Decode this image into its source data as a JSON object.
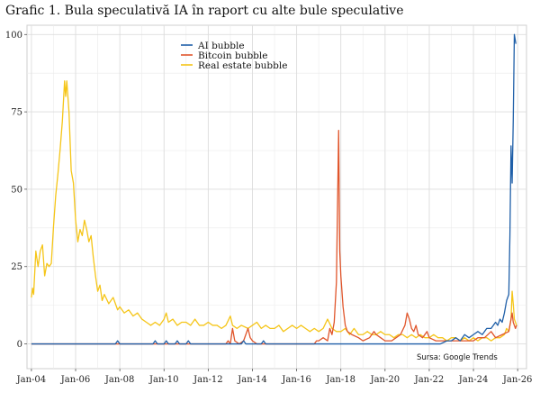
{
  "chart_data": {
    "type": "line",
    "title": "Grafic 1. Bula speculativă IA în raport cu alte bule speculative",
    "xlabel": "",
    "ylabel": "",
    "source": "Sursa: Google Trends",
    "xlim": [
      2003.8,
      2026.4
    ],
    "ylim": [
      -8,
      103
    ],
    "yticks": [
      0,
      25,
      50,
      75,
      100
    ],
    "xticks": [
      {
        "label": "Jan-04",
        "value": 2004
      },
      {
        "label": "Jan-06",
        "value": 2006
      },
      {
        "label": "Jan-08",
        "value": 2008
      },
      {
        "label": "Jan-10",
        "value": 2010
      },
      {
        "label": "Jan-12",
        "value": 2012
      },
      {
        "label": "Jan-14",
        "value": 2014
      },
      {
        "label": "Jan-16",
        "value": 2016
      },
      {
        "label": "Jan-18",
        "value": 2018
      },
      {
        "label": "Jan-20",
        "value": 2020
      },
      {
        "label": "Jan-22",
        "value": 2022
      },
      {
        "label": "Jan-24",
        "value": 2024
      },
      {
        "label": "Jan-26",
        "value": 2026
      }
    ],
    "grid": true,
    "legend_position": "top-center",
    "series": [
      {
        "name": "AI bubble",
        "color": "#1f5fa8",
        "points": [
          [
            2004.0,
            0
          ],
          [
            2007.8,
            0
          ],
          [
            2007.9,
            1
          ],
          [
            2008.0,
            0
          ],
          [
            2009.5,
            0
          ],
          [
            2009.6,
            1
          ],
          [
            2009.7,
            0
          ],
          [
            2010.0,
            0
          ],
          [
            2010.1,
            1
          ],
          [
            2010.2,
            0
          ],
          [
            2010.5,
            0
          ],
          [
            2010.6,
            1
          ],
          [
            2010.7,
            0
          ],
          [
            2011.0,
            0
          ],
          [
            2011.1,
            1
          ],
          [
            2011.2,
            0
          ],
          [
            2012.0,
            0
          ],
          [
            2013.5,
            0
          ],
          [
            2013.6,
            1
          ],
          [
            2013.7,
            0
          ],
          [
            2014.4,
            0
          ],
          [
            2014.5,
            1
          ],
          [
            2014.6,
            0
          ],
          [
            2022.5,
            0
          ],
          [
            2022.8,
            1
          ],
          [
            2023.0,
            1
          ],
          [
            2023.2,
            2
          ],
          [
            2023.4,
            1
          ],
          [
            2023.6,
            3
          ],
          [
            2023.8,
            2
          ],
          [
            2024.0,
            3
          ],
          [
            2024.2,
            4
          ],
          [
            2024.4,
            3
          ],
          [
            2024.6,
            5
          ],
          [
            2024.8,
            5
          ],
          [
            2025.0,
            7
          ],
          [
            2025.1,
            6
          ],
          [
            2025.2,
            8
          ],
          [
            2025.3,
            7
          ],
          [
            2025.4,
            10
          ],
          [
            2025.5,
            14
          ],
          [
            2025.6,
            16
          ],
          [
            2025.65,
            35
          ],
          [
            2025.7,
            64
          ],
          [
            2025.75,
            52
          ],
          [
            2025.8,
            72
          ],
          [
            2025.85,
            100
          ],
          [
            2025.92,
            97
          ]
        ]
      },
      {
        "name": "Bitcoin bubble",
        "color": "#e0552b",
        "points": [
          [
            2004.0,
            0
          ],
          [
            2012.0,
            0
          ],
          [
            2012.8,
            0
          ],
          [
            2012.9,
            1
          ],
          [
            2013.0,
            0
          ],
          [
            2013.1,
            5
          ],
          [
            2013.2,
            1
          ],
          [
            2013.4,
            0
          ],
          [
            2013.6,
            1
          ],
          [
            2013.8,
            5
          ],
          [
            2013.9,
            2
          ],
          [
            2014.0,
            1
          ],
          [
            2014.2,
            0
          ],
          [
            2016.0,
            0
          ],
          [
            2016.8,
            0
          ],
          [
            2016.9,
            1
          ],
          [
            2017.0,
            1
          ],
          [
            2017.2,
            2
          ],
          [
            2017.4,
            1
          ],
          [
            2017.5,
            5
          ],
          [
            2017.6,
            3
          ],
          [
            2017.7,
            7
          ],
          [
            2017.8,
            20
          ],
          [
            2017.9,
            69
          ],
          [
            2017.95,
            30
          ],
          [
            2018.0,
            22
          ],
          [
            2018.1,
            12
          ],
          [
            2018.2,
            6
          ],
          [
            2018.3,
            4
          ],
          [
            2018.5,
            3
          ],
          [
            2018.8,
            2
          ],
          [
            2019.0,
            1
          ],
          [
            2019.3,
            2
          ],
          [
            2019.5,
            4
          ],
          [
            2019.6,
            3
          ],
          [
            2019.8,
            2
          ],
          [
            2020.0,
            1
          ],
          [
            2020.3,
            1
          ],
          [
            2020.5,
            2
          ],
          [
            2020.7,
            3
          ],
          [
            2020.9,
            6
          ],
          [
            2021.0,
            10
          ],
          [
            2021.1,
            8
          ],
          [
            2021.2,
            5
          ],
          [
            2021.3,
            4
          ],
          [
            2021.4,
            6
          ],
          [
            2021.5,
            3
          ],
          [
            2021.7,
            2
          ],
          [
            2021.9,
            4
          ],
          [
            2022.0,
            2
          ],
          [
            2022.3,
            1
          ],
          [
            2022.6,
            1
          ],
          [
            2023.0,
            1
          ],
          [
            2023.5,
            1
          ],
          [
            2024.0,
            1
          ],
          [
            2024.2,
            2
          ],
          [
            2024.5,
            2
          ],
          [
            2024.8,
            4
          ],
          [
            2025.0,
            2
          ],
          [
            2025.3,
            3
          ],
          [
            2025.6,
            4
          ],
          [
            2025.75,
            10
          ],
          [
            2025.8,
            7
          ],
          [
            2025.9,
            5
          ],
          [
            2025.95,
            6
          ]
        ]
      },
      {
        "name": "Real estate bubble",
        "color": "#f5c518",
        "points": [
          [
            2004.0,
            15
          ],
          [
            2004.05,
            18
          ],
          [
            2004.1,
            16
          ],
          [
            2004.2,
            30
          ],
          [
            2004.3,
            25
          ],
          [
            2004.4,
            30
          ],
          [
            2004.5,
            32
          ],
          [
            2004.6,
            22
          ],
          [
            2004.7,
            26
          ],
          [
            2004.8,
            25
          ],
          [
            2004.9,
            26
          ],
          [
            2005.0,
            38
          ],
          [
            2005.1,
            48
          ],
          [
            2005.2,
            55
          ],
          [
            2005.3,
            63
          ],
          [
            2005.4,
            72
          ],
          [
            2005.5,
            85
          ],
          [
            2005.55,
            80
          ],
          [
            2005.6,
            85
          ],
          [
            2005.7,
            75
          ],
          [
            2005.8,
            56
          ],
          [
            2005.9,
            52
          ],
          [
            2006.0,
            40
          ],
          [
            2006.1,
            33
          ],
          [
            2006.2,
            37
          ],
          [
            2006.3,
            35
          ],
          [
            2006.4,
            40
          ],
          [
            2006.5,
            37
          ],
          [
            2006.6,
            33
          ],
          [
            2006.7,
            35
          ],
          [
            2006.8,
            28
          ],
          [
            2006.9,
            22
          ],
          [
            2007.0,
            17
          ],
          [
            2007.1,
            19
          ],
          [
            2007.2,
            14
          ],
          [
            2007.3,
            16
          ],
          [
            2007.5,
            13
          ],
          [
            2007.7,
            15
          ],
          [
            2007.9,
            11
          ],
          [
            2008.0,
            12
          ],
          [
            2008.2,
            10
          ],
          [
            2008.4,
            11
          ],
          [
            2008.6,
            9
          ],
          [
            2008.8,
            10
          ],
          [
            2009.0,
            8
          ],
          [
            2009.2,
            7
          ],
          [
            2009.4,
            6
          ],
          [
            2009.6,
            7
          ],
          [
            2009.8,
            6
          ],
          [
            2010.0,
            8
          ],
          [
            2010.1,
            10
          ],
          [
            2010.2,
            7
          ],
          [
            2010.4,
            8
          ],
          [
            2010.6,
            6
          ],
          [
            2010.8,
            7
          ],
          [
            2011.0,
            7
          ],
          [
            2011.2,
            6
          ],
          [
            2011.4,
            8
          ],
          [
            2011.6,
            6
          ],
          [
            2011.8,
            6
          ],
          [
            2012.0,
            7
          ],
          [
            2012.2,
            6
          ],
          [
            2012.4,
            6
          ],
          [
            2012.6,
            5
          ],
          [
            2012.8,
            6
          ],
          [
            2013.0,
            9
          ],
          [
            2013.1,
            6
          ],
          [
            2013.3,
            5
          ],
          [
            2013.5,
            6
          ],
          [
            2013.8,
            5
          ],
          [
            2014.0,
            6
          ],
          [
            2014.2,
            7
          ],
          [
            2014.4,
            5
          ],
          [
            2014.6,
            6
          ],
          [
            2014.8,
            5
          ],
          [
            2015.0,
            5
          ],
          [
            2015.2,
            6
          ],
          [
            2015.4,
            4
          ],
          [
            2015.6,
            5
          ],
          [
            2015.8,
            6
          ],
          [
            2016.0,
            5
          ],
          [
            2016.2,
            6
          ],
          [
            2016.4,
            5
          ],
          [
            2016.6,
            4
          ],
          [
            2016.8,
            5
          ],
          [
            2017.0,
            4
          ],
          [
            2017.2,
            5
          ],
          [
            2017.4,
            8
          ],
          [
            2017.6,
            5
          ],
          [
            2017.8,
            4
          ],
          [
            2018.0,
            4
          ],
          [
            2018.2,
            5
          ],
          [
            2018.4,
            3
          ],
          [
            2018.6,
            5
          ],
          [
            2018.8,
            3
          ],
          [
            2019.0,
            3
          ],
          [
            2019.2,
            4
          ],
          [
            2019.4,
            3
          ],
          [
            2019.6,
            3
          ],
          [
            2019.8,
            4
          ],
          [
            2020.0,
            3
          ],
          [
            2020.2,
            3
          ],
          [
            2020.4,
            2
          ],
          [
            2020.6,
            3
          ],
          [
            2020.8,
            3
          ],
          [
            2021.0,
            2
          ],
          [
            2021.2,
            3
          ],
          [
            2021.4,
            2
          ],
          [
            2021.6,
            3
          ],
          [
            2021.8,
            2
          ],
          [
            2022.0,
            2
          ],
          [
            2022.2,
            3
          ],
          [
            2022.4,
            2
          ],
          [
            2022.6,
            2
          ],
          [
            2022.8,
            1
          ],
          [
            2023.0,
            2
          ],
          [
            2023.2,
            2
          ],
          [
            2023.4,
            1
          ],
          [
            2023.6,
            2
          ],
          [
            2023.8,
            1
          ],
          [
            2024.0,
            2
          ],
          [
            2024.2,
            1
          ],
          [
            2024.4,
            2
          ],
          [
            2024.6,
            2
          ],
          [
            2024.8,
            1
          ],
          [
            2025.0,
            2
          ],
          [
            2025.2,
            2
          ],
          [
            2025.4,
            3
          ],
          [
            2025.5,
            5
          ],
          [
            2025.6,
            4
          ],
          [
            2025.7,
            8
          ],
          [
            2025.75,
            17
          ],
          [
            2025.8,
            13
          ],
          [
            2025.85,
            8
          ],
          [
            2025.95,
            6
          ]
        ]
      }
    ]
  }
}
